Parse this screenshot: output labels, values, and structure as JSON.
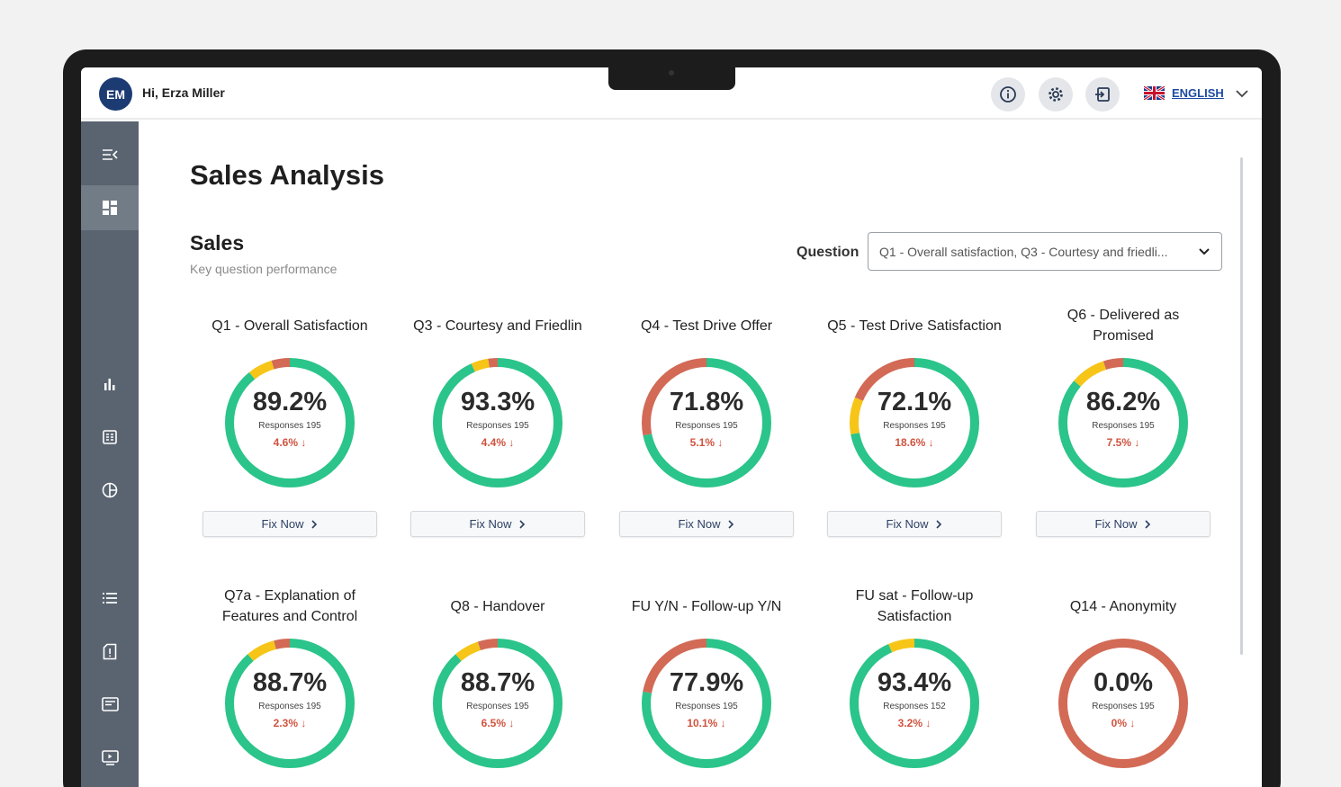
{
  "header": {
    "avatar_initials": "EM",
    "greeting": "Hi, Erza Miller",
    "language": "ENGLISH",
    "icons": [
      "info-icon",
      "settings-icon",
      "logout-icon",
      "uk-flag-icon",
      "chevron-down-icon"
    ]
  },
  "sidebar": {
    "items": [
      "collapse-menu-icon",
      "dashboard-icon",
      "bar-chart-icon",
      "report-icon",
      "pie-chart-icon",
      "list-icon",
      "alert-document-icon",
      "message-icon",
      "video-icon"
    ],
    "active": "dashboard-icon"
  },
  "page": {
    "title": "Sales Analysis",
    "section_title": "Sales",
    "section_subtitle": "Key question performance",
    "question_label": "Question",
    "question_value": "Q1 - Overall satisfaction, Q3 - Courtesy and friedli..."
  },
  "colors": {
    "green": "#2bc48a",
    "yellow": "#f6c518",
    "red": "#d26a56",
    "accent": "#1d3b73"
  },
  "fix_label": "Fix Now",
  "cards": [
    {
      "title": "Q1 - Overall Satisfaction",
      "pct": "89.2%",
      "responses": "Responses 195",
      "delta": "4.6% ↓",
      "green": 0.892,
      "yellow": 0.062,
      "red": 0.046
    },
    {
      "title": "Q3 - Courtesy and Friedlin",
      "pct": "93.3%",
      "responses": "Responses 195",
      "delta": "4.4% ↓",
      "green": 0.933,
      "yellow": 0.043,
      "red": 0.024
    },
    {
      "title": "Q4 - Test Drive Offer",
      "pct": "71.8%",
      "responses": "Responses 195",
      "delta": "5.1% ↓",
      "green": 0.718,
      "yellow": 0.0,
      "red": 0.282
    },
    {
      "title": "Q5 - Test Drive Satisfaction",
      "pct": "72.1%",
      "responses": "Responses 195",
      "delta": "18.6% ↓",
      "green": 0.721,
      "yellow": 0.093,
      "red": 0.186
    },
    {
      "title": "Q6 - Delivered as Promised",
      "pct": "86.2%",
      "responses": "Responses 195",
      "delta": "7.5% ↓",
      "green": 0.862,
      "yellow": 0.088,
      "red": 0.05
    },
    {
      "title": "Q7a - Explanation of Features and Control",
      "pct": "88.7%",
      "responses": "Responses 195",
      "delta": "2.3% ↓",
      "green": 0.887,
      "yellow": 0.073,
      "red": 0.04
    },
    {
      "title": "Q8 - Handover",
      "pct": "88.7%",
      "responses": "Responses 195",
      "delta": "6.5% ↓",
      "green": 0.887,
      "yellow": 0.063,
      "red": 0.05
    },
    {
      "title": "FU Y/N - Follow-up Y/N",
      "pct": "77.9%",
      "responses": "Responses 195",
      "delta": "10.1% ↓",
      "green": 0.779,
      "yellow": 0.0,
      "red": 0.221
    },
    {
      "title": "FU sat - Follow-up Satisfaction",
      "pct": "93.4%",
      "responses": "Responses 152",
      "delta": "3.2% ↓",
      "green": 0.934,
      "yellow": 0.066,
      "red": 0.0
    },
    {
      "title": "Q14 - Anonymity",
      "pct": "0.0%",
      "responses": "Responses 195",
      "delta": "0% ↓",
      "green": 0.0,
      "yellow": 0.0,
      "red": 1.0
    }
  ]
}
